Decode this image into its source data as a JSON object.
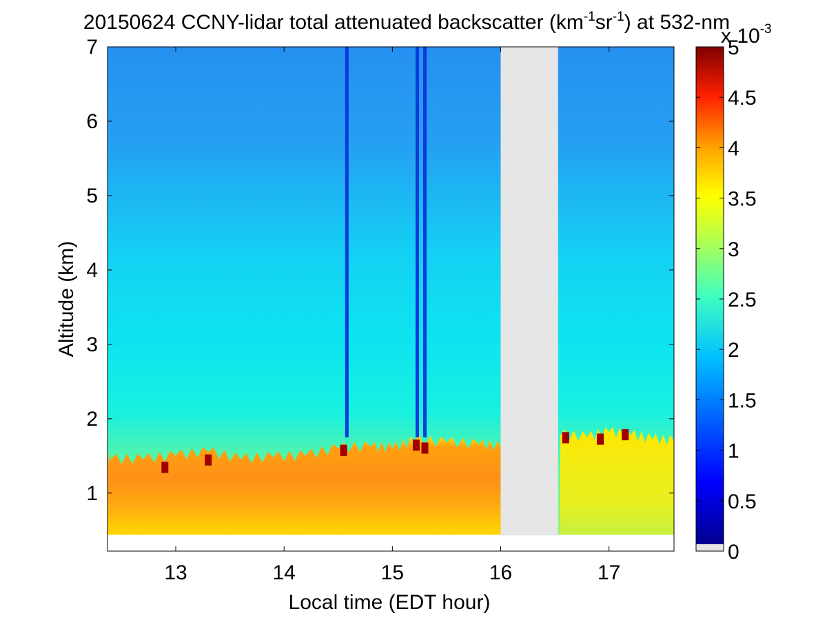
{
  "chart_data": {
    "type": "heatmap",
    "title_main": "20150624 CCNY-lidar total attenuated backscatter (km",
    "title_sup1": "-1",
    "title_mid": "sr",
    "title_sup2": "-1",
    "title_end": ") at 532-nm",
    "xlabel": "Local time (EDT hour)",
    "ylabel": "Altitude (km)",
    "xlim": [
      12.37,
      17.6
    ],
    "ylim": [
      0.22,
      7
    ],
    "xticks": [
      13,
      14,
      15,
      16,
      17
    ],
    "yticks": [
      1,
      2,
      3,
      4,
      5,
      6,
      7
    ],
    "data_gap": [
      16.0,
      16.53
    ],
    "data_bottom_altitude_km": 0.44,
    "boundary_layer_top_km": [
      [
        12.4,
        1.45
      ],
      [
        12.7,
        1.45
      ],
      [
        13.0,
        1.5
      ],
      [
        13.3,
        1.55
      ],
      [
        13.6,
        1.45
      ],
      [
        13.9,
        1.48
      ],
      [
        14.2,
        1.5
      ],
      [
        14.5,
        1.6
      ],
      [
        14.8,
        1.62
      ],
      [
        15.0,
        1.6
      ],
      [
        15.2,
        1.7
      ],
      [
        15.5,
        1.68
      ],
      [
        15.8,
        1.65
      ],
      [
        16.0,
        1.62
      ],
      [
        16.55,
        1.78
      ],
      [
        16.8,
        1.75
      ],
      [
        17.0,
        1.82
      ],
      [
        17.2,
        1.78
      ],
      [
        17.4,
        1.72
      ],
      [
        17.6,
        1.7
      ]
    ],
    "dropout_times": [
      14.58,
      15.23,
      15.3
    ],
    "colorbar": {
      "min": 0,
      "max": 5,
      "ticks": [
        "0",
        "0.5",
        "1",
        "1.5",
        "2",
        "2.5",
        "3",
        "3.5",
        "4",
        "4.5",
        "5"
      ],
      "exponent_base": "x 10",
      "exponent_power": "-3",
      "colormap": [
        "#00008f",
        "#0000ff",
        "#0080ff",
        "#00ffff",
        "#80ff80",
        "#ffff00",
        "#ff8000",
        "#ff0000",
        "#800000"
      ],
      "nodata_color": "#e6e6e6"
    }
  }
}
